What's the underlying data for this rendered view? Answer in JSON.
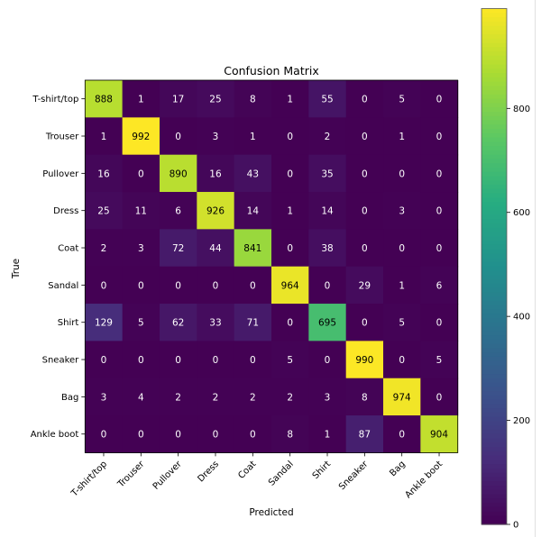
{
  "chart_data": {
    "type": "heatmap",
    "title": "Confusion Matrix",
    "xlabel": "Predicted",
    "ylabel": "True",
    "x_categories": [
      "T-shirt/top",
      "Trouser",
      "Pullover",
      "Dress",
      "Coat",
      "Sandal",
      "Shirt",
      "Sneaker",
      "Bag",
      "Ankle boot"
    ],
    "y_categories": [
      "T-shirt/top",
      "Trouser",
      "Pullover",
      "Dress",
      "Coat",
      "Sandal",
      "Shirt",
      "Sneaker",
      "Bag",
      "Ankle boot"
    ],
    "values": [
      [
        888,
        1,
        17,
        25,
        8,
        1,
        55,
        0,
        5,
        0
      ],
      [
        1,
        992,
        0,
        3,
        1,
        0,
        2,
        0,
        1,
        0
      ],
      [
        16,
        0,
        890,
        16,
        43,
        0,
        35,
        0,
        0,
        0
      ],
      [
        25,
        11,
        6,
        926,
        14,
        1,
        14,
        0,
        3,
        0
      ],
      [
        2,
        3,
        72,
        44,
        841,
        0,
        38,
        0,
        0,
        0
      ],
      [
        0,
        0,
        0,
        0,
        0,
        964,
        0,
        29,
        1,
        6
      ],
      [
        129,
        5,
        62,
        33,
        71,
        0,
        695,
        0,
        5,
        0
      ],
      [
        0,
        0,
        0,
        0,
        0,
        5,
        0,
        990,
        0,
        5
      ],
      [
        3,
        4,
        2,
        2,
        2,
        2,
        3,
        8,
        974,
        0
      ],
      [
        0,
        0,
        0,
        0,
        0,
        8,
        1,
        87,
        0,
        904
      ]
    ],
    "colormap": "viridis",
    "colorbar": {
      "range": [
        0,
        992
      ],
      "ticks": [
        0,
        200,
        400,
        600,
        800
      ]
    },
    "grid": false
  }
}
